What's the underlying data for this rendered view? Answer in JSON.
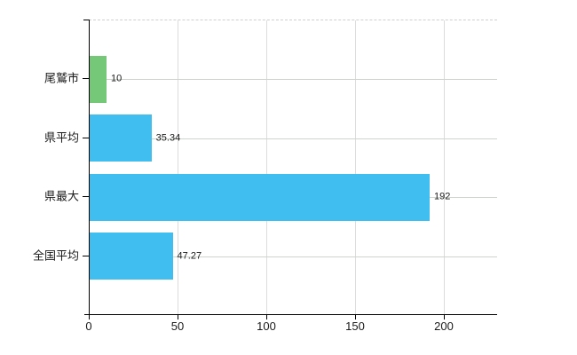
{
  "chart_data": {
    "type": "bar",
    "orientation": "horizontal",
    "title": "",
    "xlabel": "",
    "ylabel": "",
    "categories": [
      "尾鷲市",
      "県平均",
      "県最大",
      "全国平均"
    ],
    "values": [
      10,
      35.34,
      192,
      47.27
    ],
    "value_labels": [
      "10",
      "35.34",
      "192",
      "47.27"
    ],
    "bar_colors": [
      "#74c878",
      "#41bef0",
      "#41bef0",
      "#41bef0"
    ],
    "x_ticks": [
      0,
      50,
      100,
      150,
      200
    ],
    "x_tick_labels": [
      "0",
      "50",
      "100",
      "150",
      "200"
    ],
    "xlim": [
      0,
      230
    ],
    "grid": "on",
    "legend": "none",
    "colors": {
      "background": "#ffffff",
      "axis": "#000000",
      "gridline_vertical": "#dcdcdc",
      "gridline_horizontal": "#ccd6cc",
      "plot_top_border": "#cfcfcf",
      "text": "#1a1a1a",
      "bar_green": "#74c878",
      "bar_blue": "#41bef0"
    }
  }
}
